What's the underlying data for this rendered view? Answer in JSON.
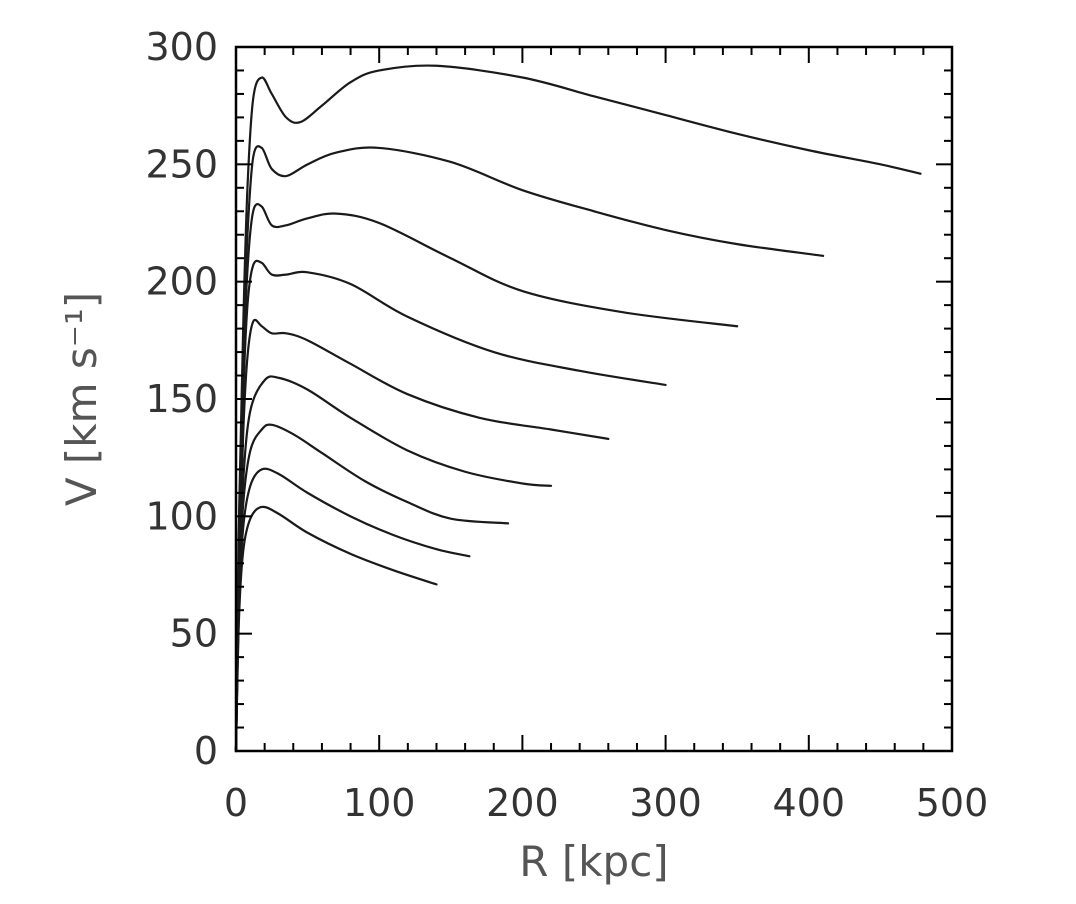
{
  "chart_data": {
    "type": "line",
    "xlabel": "R [kpc]",
    "ylabel": "V [km s⁻¹]",
    "xlim": [
      0,
      500
    ],
    "ylim": [
      0,
      300
    ],
    "xticks": [
      0,
      100,
      200,
      300,
      400,
      500
    ],
    "yticks": [
      0,
      50,
      100,
      150,
      200,
      250,
      300
    ],
    "grid": false,
    "series": [
      {
        "x": [
          0,
          2,
          5,
          10,
          18,
          30,
          50,
          80,
          110,
          140
        ],
        "y": [
          0,
          55,
          85,
          99,
          104,
          101,
          93,
          84,
          77,
          71
        ]
      },
      {
        "x": [
          0,
          2,
          5,
          10,
          18,
          30,
          50,
          80,
          110,
          140,
          163
        ],
        "y": [
          0,
          60,
          95,
          113,
          120,
          118,
          110,
          100,
          92,
          86,
          83
        ]
      },
      {
        "x": [
          0,
          2,
          5,
          10,
          18,
          25,
          40,
          60,
          90,
          120,
          150,
          190
        ],
        "y": [
          0,
          65,
          105,
          128,
          137,
          139,
          135,
          127,
          115,
          106,
          99,
          97
        ]
      },
      {
        "x": [
          0,
          2,
          5,
          10,
          20,
          30,
          50,
          80,
          120,
          160,
          200,
          220
        ],
        "y": [
          0,
          70,
          115,
          145,
          158,
          159,
          154,
          142,
          128,
          119,
          114,
          113
        ]
      },
      {
        "x": [
          0,
          2,
          5,
          8,
          12,
          18,
          25,
          35,
          50,
          80,
          120,
          170,
          220,
          260
        ],
        "y": [
          0,
          75,
          135,
          168,
          183,
          181,
          178,
          178,
          175,
          165,
          152,
          142,
          137,
          133
        ]
      },
      {
        "x": [
          0,
          2,
          5,
          8,
          12,
          18,
          25,
          35,
          50,
          80,
          120,
          180,
          240,
          300
        ],
        "y": [
          0,
          80,
          150,
          190,
          207,
          208,
          203,
          203,
          204,
          199,
          185,
          170,
          162,
          156
        ]
      },
      {
        "x": [
          0,
          2,
          5,
          8,
          12,
          18,
          25,
          35,
          50,
          70,
          100,
          150,
          200,
          270,
          350
        ],
        "y": [
          0,
          85,
          160,
          205,
          230,
          232,
          224,
          224,
          227,
          229,
          225,
          210,
          196,
          187,
          181
        ]
      },
      {
        "x": [
          0,
          2,
          5,
          8,
          12,
          18,
          25,
          35,
          50,
          70,
          100,
          150,
          200,
          250,
          300,
          350,
          410
        ],
        "y": [
          0,
          90,
          170,
          220,
          253,
          257,
          248,
          245,
          250,
          255,
          257,
          251,
          239,
          230,
          222,
          216,
          211
        ]
      },
      {
        "x": [
          0,
          2,
          5,
          8,
          12,
          18,
          25,
          35,
          45,
          60,
          80,
          100,
          140,
          200,
          250,
          300,
          350,
          400,
          450,
          478
        ],
        "y": [
          0,
          95,
          180,
          240,
          278,
          287,
          280,
          270,
          268,
          275,
          285,
          290,
          292,
          287,
          279,
          271,
          263,
          256,
          250,
          246
        ]
      }
    ]
  }
}
